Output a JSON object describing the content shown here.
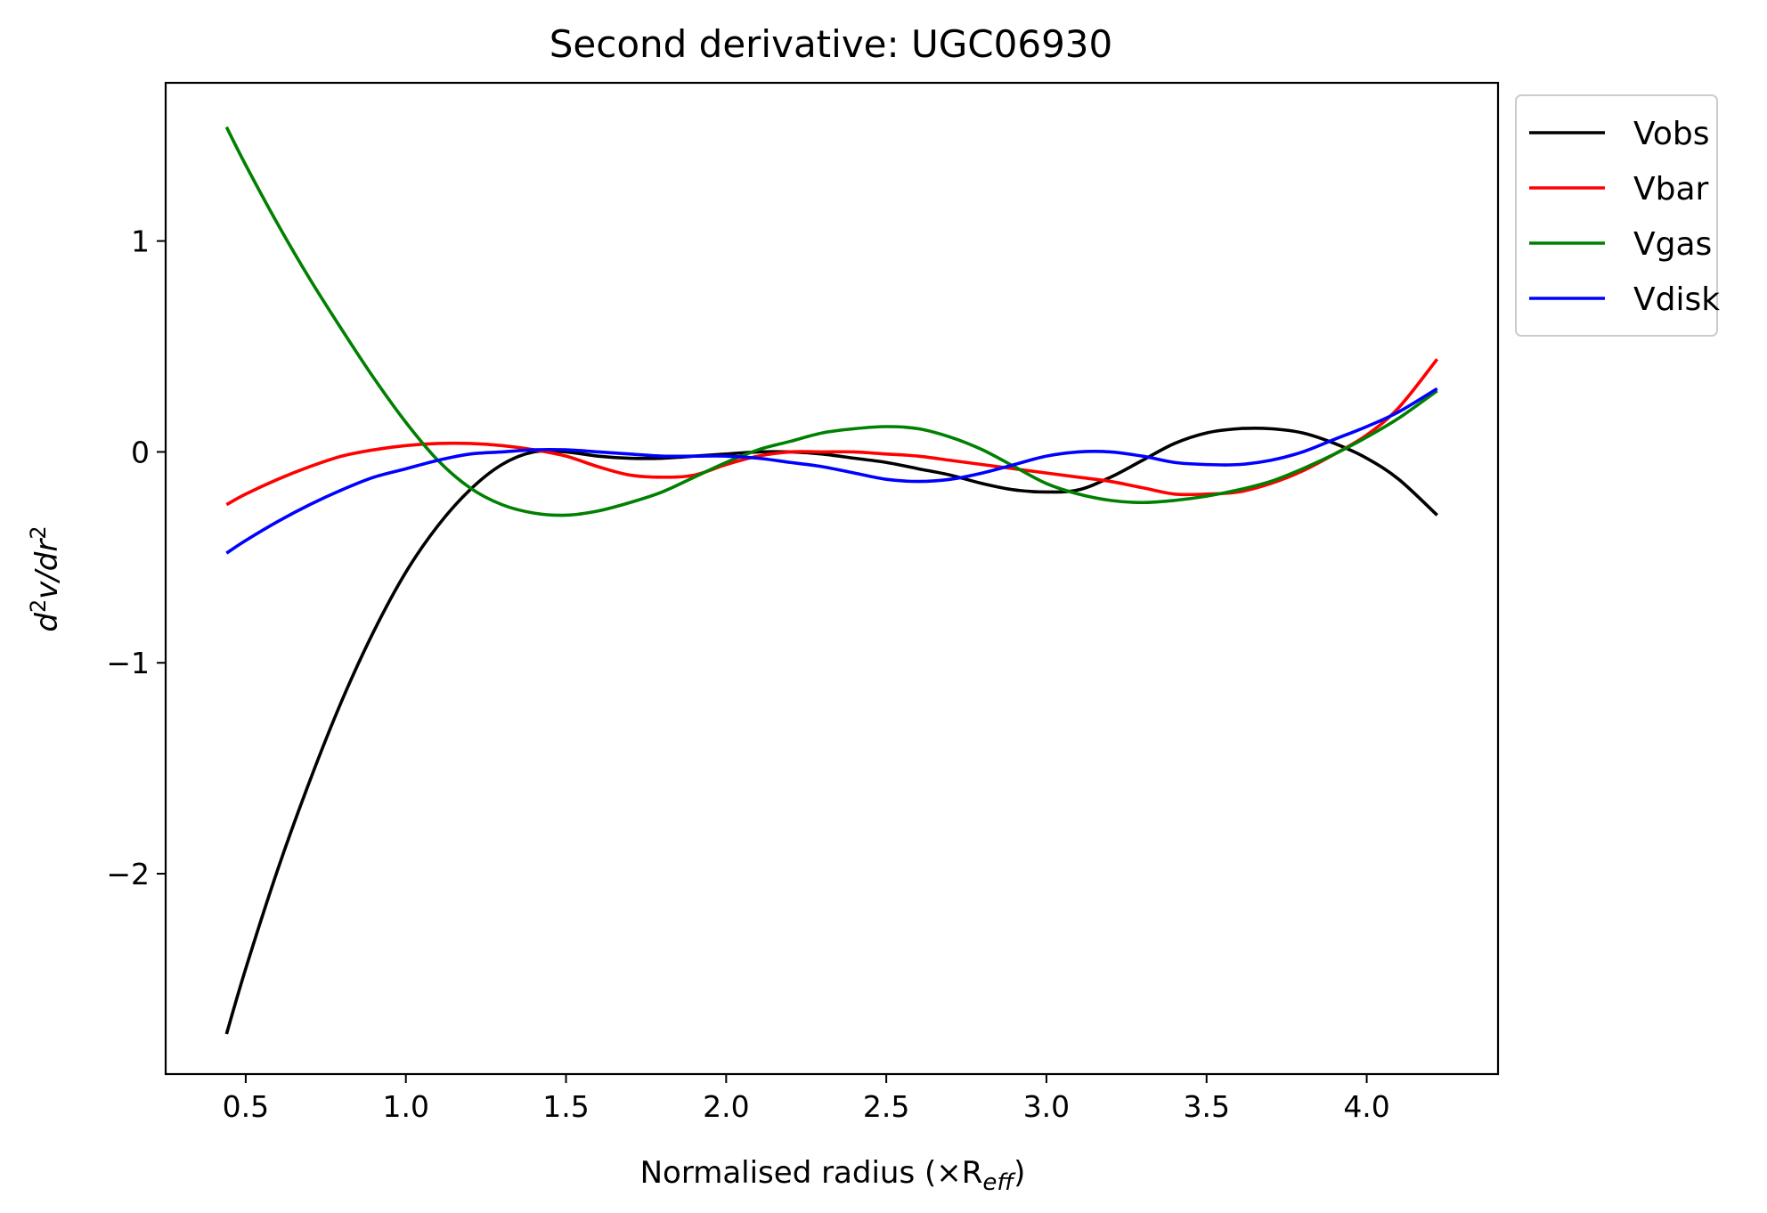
{
  "chart_data": {
    "type": "line",
    "title": "Second derivative: UGC06930",
    "xlabel": "Normalised radius (×R",
    "xlabel_sub": "eff",
    "xlabel_close": ")",
    "ylabel_d": "d",
    "ylabel_v": "v/dr",
    "ylabel_exp": "2",
    "xlim": [
      0.25,
      4.41
    ],
    "ylim": [
      -2.95,
      1.75
    ],
    "xticks": [
      0.5,
      1.0,
      1.5,
      2.0,
      2.5,
      3.0,
      3.5,
      4.0
    ],
    "xtick_labels": [
      "0.5",
      "1.0",
      "1.5",
      "2.0",
      "2.5",
      "3.0",
      "3.5",
      "4.0"
    ],
    "yticks": [
      -2,
      -1,
      0,
      1
    ],
    "ytick_labels": [
      "−2",
      "−1",
      "0",
      "1"
    ],
    "legend_position": "outside-upper-right",
    "series": [
      {
        "name": "Vobs",
        "color": "#000000",
        "points": [
          [
            0.44,
            -2.76
          ],
          [
            0.5,
            -2.45
          ],
          [
            0.6,
            -1.98
          ],
          [
            0.7,
            -1.56
          ],
          [
            0.8,
            -1.18
          ],
          [
            0.9,
            -0.85
          ],
          [
            1.0,
            -0.57
          ],
          [
            1.1,
            -0.35
          ],
          [
            1.2,
            -0.18
          ],
          [
            1.3,
            -0.06
          ],
          [
            1.4,
            0.0
          ],
          [
            1.5,
            0.0
          ],
          [
            1.6,
            -0.02
          ],
          [
            1.7,
            -0.03
          ],
          [
            1.8,
            -0.03
          ],
          [
            1.9,
            -0.02
          ],
          [
            2.0,
            -0.01
          ],
          [
            2.1,
            0.0
          ],
          [
            2.2,
            0.0
          ],
          [
            2.3,
            -0.01
          ],
          [
            2.4,
            -0.03
          ],
          [
            2.5,
            -0.05
          ],
          [
            2.6,
            -0.08
          ],
          [
            2.7,
            -0.11
          ],
          [
            2.8,
            -0.15
          ],
          [
            2.9,
            -0.18
          ],
          [
            3.0,
            -0.19
          ],
          [
            3.1,
            -0.18
          ],
          [
            3.2,
            -0.12
          ],
          [
            3.3,
            -0.04
          ],
          [
            3.4,
            0.04
          ],
          [
            3.5,
            0.09
          ],
          [
            3.6,
            0.11
          ],
          [
            3.7,
            0.11
          ],
          [
            3.8,
            0.09
          ],
          [
            3.9,
            0.04
          ],
          [
            4.0,
            -0.03
          ],
          [
            4.1,
            -0.13
          ],
          [
            4.22,
            -0.3
          ]
        ]
      },
      {
        "name": "Vbar",
        "color": "#ff0000",
        "points": [
          [
            0.44,
            -0.25
          ],
          [
            0.5,
            -0.2
          ],
          [
            0.6,
            -0.13
          ],
          [
            0.7,
            -0.07
          ],
          [
            0.8,
            -0.02
          ],
          [
            0.9,
            0.01
          ],
          [
            1.0,
            0.03
          ],
          [
            1.1,
            0.04
          ],
          [
            1.2,
            0.04
          ],
          [
            1.3,
            0.03
          ],
          [
            1.4,
            0.01
          ],
          [
            1.5,
            -0.02
          ],
          [
            1.6,
            -0.07
          ],
          [
            1.7,
            -0.11
          ],
          [
            1.8,
            -0.12
          ],
          [
            1.9,
            -0.11
          ],
          [
            2.0,
            -0.06
          ],
          [
            2.1,
            -0.02
          ],
          [
            2.2,
            0.0
          ],
          [
            2.3,
            0.0
          ],
          [
            2.4,
            0.0
          ],
          [
            2.5,
            -0.01
          ],
          [
            2.6,
            -0.02
          ],
          [
            2.7,
            -0.04
          ],
          [
            2.8,
            -0.06
          ],
          [
            2.9,
            -0.08
          ],
          [
            3.0,
            -0.1
          ],
          [
            3.1,
            -0.12
          ],
          [
            3.2,
            -0.14
          ],
          [
            3.3,
            -0.17
          ],
          [
            3.4,
            -0.2
          ],
          [
            3.5,
            -0.2
          ],
          [
            3.6,
            -0.19
          ],
          [
            3.7,
            -0.15
          ],
          [
            3.8,
            -0.09
          ],
          [
            3.9,
            -0.01
          ],
          [
            4.0,
            0.08
          ],
          [
            4.1,
            0.21
          ],
          [
            4.22,
            0.44
          ]
        ]
      },
      {
        "name": "Vgas",
        "color": "#008000",
        "points": [
          [
            0.44,
            1.54
          ],
          [
            0.5,
            1.36
          ],
          [
            0.6,
            1.08
          ],
          [
            0.7,
            0.82
          ],
          [
            0.8,
            0.58
          ],
          [
            0.9,
            0.35
          ],
          [
            1.0,
            0.14
          ],
          [
            1.1,
            -0.04
          ],
          [
            1.2,
            -0.17
          ],
          [
            1.3,
            -0.25
          ],
          [
            1.4,
            -0.29
          ],
          [
            1.5,
            -0.3
          ],
          [
            1.6,
            -0.28
          ],
          [
            1.7,
            -0.24
          ],
          [
            1.8,
            -0.19
          ],
          [
            1.9,
            -0.12
          ],
          [
            2.0,
            -0.05
          ],
          [
            2.1,
            0.01
          ],
          [
            2.2,
            0.05
          ],
          [
            2.3,
            0.09
          ],
          [
            2.4,
            0.11
          ],
          [
            2.5,
            0.12
          ],
          [
            2.6,
            0.11
          ],
          [
            2.7,
            0.07
          ],
          [
            2.8,
            0.01
          ],
          [
            2.9,
            -0.07
          ],
          [
            3.0,
            -0.15
          ],
          [
            3.1,
            -0.2
          ],
          [
            3.2,
            -0.23
          ],
          [
            3.3,
            -0.24
          ],
          [
            3.4,
            -0.23
          ],
          [
            3.5,
            -0.21
          ],
          [
            3.6,
            -0.18
          ],
          [
            3.7,
            -0.14
          ],
          [
            3.8,
            -0.08
          ],
          [
            3.9,
            -0.01
          ],
          [
            4.0,
            0.07
          ],
          [
            4.1,
            0.16
          ],
          [
            4.22,
            0.29
          ]
        ]
      },
      {
        "name": "Vdisk",
        "color": "#0000ff",
        "points": [
          [
            0.44,
            -0.48
          ],
          [
            0.5,
            -0.42
          ],
          [
            0.6,
            -0.33
          ],
          [
            0.7,
            -0.25
          ],
          [
            0.8,
            -0.18
          ],
          [
            0.9,
            -0.12
          ],
          [
            1.0,
            -0.08
          ],
          [
            1.1,
            -0.04
          ],
          [
            1.2,
            -0.01
          ],
          [
            1.3,
            0.0
          ],
          [
            1.4,
            0.01
          ],
          [
            1.5,
            0.01
          ],
          [
            1.6,
            0.0
          ],
          [
            1.7,
            -0.01
          ],
          [
            1.8,
            -0.02
          ],
          [
            1.9,
            -0.02
          ],
          [
            2.0,
            -0.02
          ],
          [
            2.1,
            -0.03
          ],
          [
            2.2,
            -0.05
          ],
          [
            2.3,
            -0.07
          ],
          [
            2.4,
            -0.1
          ],
          [
            2.5,
            -0.13
          ],
          [
            2.6,
            -0.14
          ],
          [
            2.7,
            -0.13
          ],
          [
            2.8,
            -0.1
          ],
          [
            2.9,
            -0.06
          ],
          [
            3.0,
            -0.02
          ],
          [
            3.1,
            0.0
          ],
          [
            3.2,
            0.0
          ],
          [
            3.3,
            -0.02
          ],
          [
            3.4,
            -0.05
          ],
          [
            3.5,
            -0.06
          ],
          [
            3.6,
            -0.06
          ],
          [
            3.7,
            -0.04
          ],
          [
            3.8,
            0.0
          ],
          [
            3.9,
            0.06
          ],
          [
            4.0,
            0.12
          ],
          [
            4.1,
            0.19
          ],
          [
            4.22,
            0.3
          ]
        ]
      }
    ]
  }
}
